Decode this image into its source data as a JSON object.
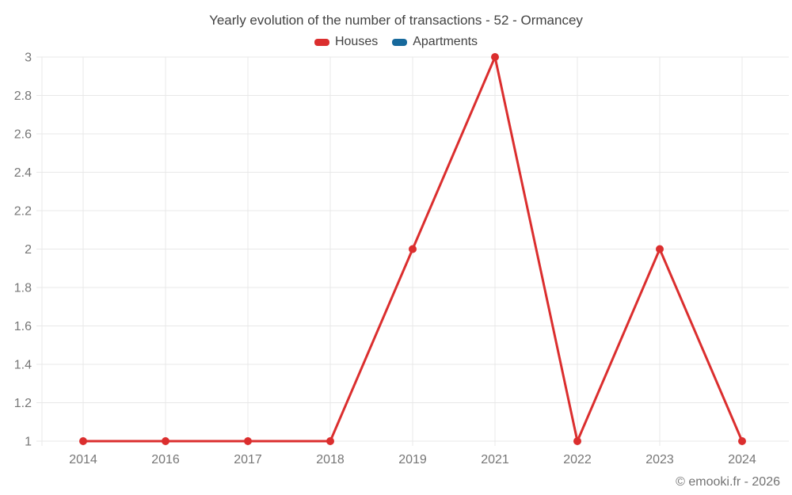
{
  "chart_data": {
    "type": "line",
    "title": "Yearly evolution of the number of transactions - 52 - Ormancey",
    "categories": [
      "2014",
      "2016",
      "2017",
      "2018",
      "2019",
      "2021",
      "2022",
      "2023",
      "2024"
    ],
    "series": [
      {
        "name": "Houses",
        "color": "#db2e2e",
        "values": [
          1,
          1,
          1,
          1,
          2,
          3,
          1,
          2,
          1
        ]
      },
      {
        "name": "Apartments",
        "color": "#17699c",
        "values": []
      }
    ],
    "xlabel": "",
    "ylabel": "",
    "ylim": [
      1,
      3
    ],
    "yticks": [
      1,
      1.2,
      1.4,
      1.6,
      1.8,
      2,
      2.2,
      2.4,
      2.6,
      2.8,
      3
    ],
    "grid": true,
    "legend_position": "top"
  },
  "footer": {
    "credit": "© emooki.fr - 2026"
  },
  "colors": {
    "grid": "#e8e8e8",
    "axis_label": "#767676",
    "title_text": "#424242",
    "footer_text": "#737373",
    "background": "#ffffff"
  }
}
